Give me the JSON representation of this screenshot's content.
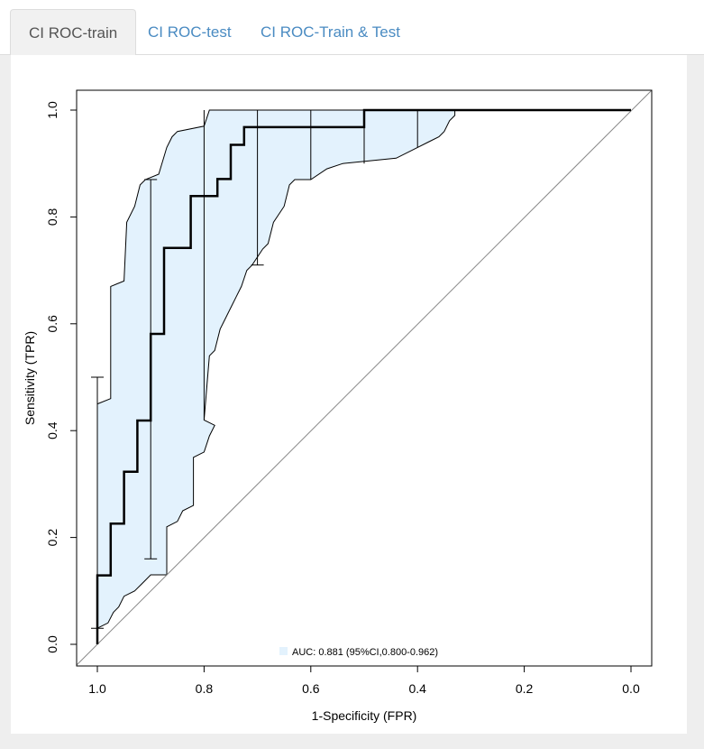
{
  "tabs": [
    {
      "label": "CI ROC-train",
      "active": true
    },
    {
      "label": "CI ROC-test",
      "active": false
    },
    {
      "label": "CI ROC-Train & Test",
      "active": false
    }
  ],
  "chart_data": {
    "type": "line",
    "xlabel": "1-Specificity (FPR)",
    "ylabel": "Sensitivity (TPR)",
    "x_reversed": true,
    "xlim": [
      1.0,
      0.0
    ],
    "ylim": [
      0.0,
      1.0
    ],
    "x_ticks": [
      "1.0",
      "0.8",
      "0.6",
      "0.4",
      "0.2",
      "0.0"
    ],
    "y_ticks": [
      "0.0",
      "0.2",
      "0.4",
      "0.6",
      "0.8",
      "1.0"
    ],
    "legend": {
      "label": "AUC: 0.881 (95%CI,0.800-0.962)",
      "color": "#e3f2fd",
      "placement": "bottom-center"
    },
    "colors": {
      "band": "#e3f2fd",
      "roc": "#000000",
      "diagonal": "#888888"
    },
    "roc_curve": [
      [
        1.0,
        0.0
      ],
      [
        1.0,
        0.129
      ],
      [
        0.975,
        0.129
      ],
      [
        0.975,
        0.226
      ],
      [
        0.95,
        0.226
      ],
      [
        0.95,
        0.323
      ],
      [
        0.925,
        0.323
      ],
      [
        0.925,
        0.419
      ],
      [
        0.9,
        0.419
      ],
      [
        0.9,
        0.581
      ],
      [
        0.875,
        0.581
      ],
      [
        0.875,
        0.742
      ],
      [
        0.825,
        0.742
      ],
      [
        0.825,
        0.839
      ],
      [
        0.775,
        0.839
      ],
      [
        0.775,
        0.871
      ],
      [
        0.75,
        0.871
      ],
      [
        0.75,
        0.935
      ],
      [
        0.725,
        0.935
      ],
      [
        0.725,
        0.968
      ],
      [
        0.5,
        0.968
      ],
      [
        0.5,
        1.0
      ],
      [
        0.0,
        1.0
      ]
    ],
    "ci_upper": [
      [
        1.0,
        0.45
      ],
      [
        0.975,
        0.46
      ],
      [
        0.975,
        0.67
      ],
      [
        0.95,
        0.68
      ],
      [
        0.945,
        0.79
      ],
      [
        0.93,
        0.82
      ],
      [
        0.92,
        0.86
      ],
      [
        0.91,
        0.87
      ],
      [
        0.885,
        0.88
      ],
      [
        0.87,
        0.93
      ],
      [
        0.86,
        0.95
      ],
      [
        0.85,
        0.96
      ],
      [
        0.8,
        0.97
      ],
      [
        0.79,
        1.0
      ],
      [
        0.0,
        1.0
      ]
    ],
    "ci_lower": [
      [
        1.0,
        0.03
      ],
      [
        0.98,
        0.04
      ],
      [
        0.97,
        0.06
      ],
      [
        0.96,
        0.07
      ],
      [
        0.95,
        0.09
      ],
      [
        0.93,
        0.1
      ],
      [
        0.92,
        0.11
      ],
      [
        0.91,
        0.12
      ],
      [
        0.9,
        0.13
      ],
      [
        0.87,
        0.13
      ],
      [
        0.87,
        0.22
      ],
      [
        0.85,
        0.23
      ],
      [
        0.84,
        0.25
      ],
      [
        0.82,
        0.26
      ],
      [
        0.82,
        0.35
      ],
      [
        0.8,
        0.36
      ],
      [
        0.79,
        0.39
      ],
      [
        0.78,
        0.41
      ],
      [
        0.8,
        0.42
      ],
      [
        0.79,
        0.54
      ],
      [
        0.78,
        0.55
      ],
      [
        0.77,
        0.59
      ],
      [
        0.76,
        0.61
      ],
      [
        0.75,
        0.63
      ],
      [
        0.74,
        0.65
      ],
      [
        0.73,
        0.67
      ],
      [
        0.72,
        0.7
      ],
      [
        0.71,
        0.71
      ],
      [
        0.69,
        0.74
      ],
      [
        0.68,
        0.75
      ],
      [
        0.67,
        0.79
      ],
      [
        0.65,
        0.82
      ],
      [
        0.64,
        0.86
      ],
      [
        0.63,
        0.87
      ],
      [
        0.6,
        0.87
      ],
      [
        0.57,
        0.89
      ],
      [
        0.54,
        0.9
      ],
      [
        0.44,
        0.91
      ],
      [
        0.4,
        0.93
      ],
      [
        0.38,
        0.94
      ],
      [
        0.36,
        0.95
      ],
      [
        0.35,
        0.96
      ],
      [
        0.34,
        0.98
      ],
      [
        0.33,
        0.99
      ],
      [
        0.33,
        1.0
      ]
    ],
    "ci_bars": [
      {
        "x": 1.0,
        "low": 0.03,
        "high": 0.5,
        "caps": true
      },
      {
        "x": 0.9,
        "low": 0.16,
        "high": 0.87,
        "caps": true
      },
      {
        "x": 0.8,
        "low": 0.42,
        "high": 1.0,
        "caps": false
      },
      {
        "x": 0.7,
        "low": 0.71,
        "high": 1.0,
        "caps": true
      },
      {
        "x": 0.6,
        "low": 0.87,
        "high": 1.0,
        "caps": false
      },
      {
        "x": 0.5,
        "low": 0.9,
        "high": 1.0,
        "caps": false
      },
      {
        "x": 0.4,
        "low": 0.93,
        "high": 1.0,
        "caps": false
      }
    ]
  }
}
